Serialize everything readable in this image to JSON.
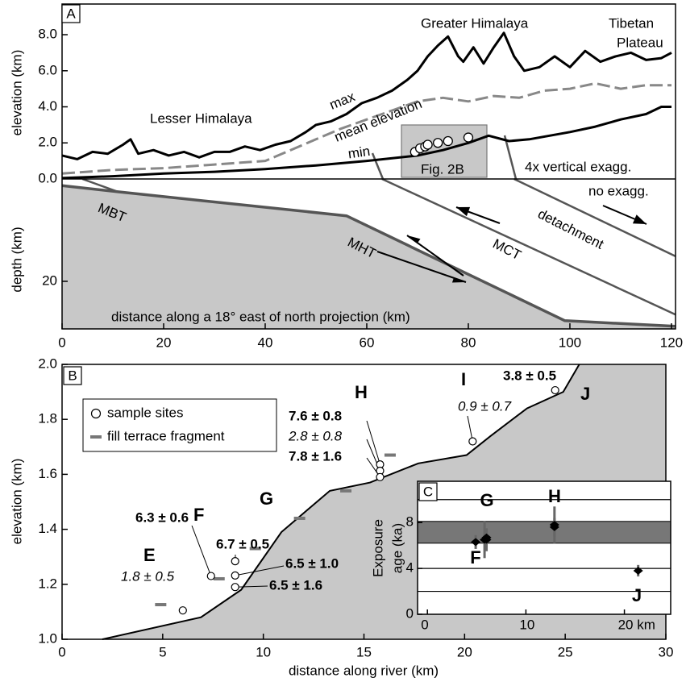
{
  "chart_data": [
    {
      "type": "line",
      "panel": "A",
      "xlabel": "distance along a 18° east of north projection (km)",
      "ylabel": "elevation (km)",
      "y2label": "depth (km)",
      "annotations": [
        "Lesser Himalaya",
        "Greater Himalaya",
        "Tibetan",
        "Plateau",
        "Fig. 2B",
        "4x vertical exagg.",
        "no exagg."
      ],
      "xlim": [
        0,
        120.8
      ],
      "xticks": [
        0,
        20,
        40,
        60,
        80,
        100,
        120
      ],
      "ylim": [
        0,
        9.7
      ],
      "yticks": [
        {
          "value": 0,
          "label": "0.0"
        },
        {
          "value": 2,
          "label": "2.0"
        },
        {
          "value": 4,
          "label": "4.0"
        },
        {
          "value": 6,
          "label": "6.0"
        },
        {
          "value": 8,
          "label": "8.0"
        }
      ],
      "y2lim": [
        0,
        29.3
      ],
      "y2ticks": [
        20
      ],
      "series": [
        {
          "name": "max",
          "color": "#000000",
          "x": [
            0,
            3,
            6,
            9,
            12,
            13.5,
            15,
            18,
            21,
            24,
            27,
            30,
            33,
            36,
            39,
            42,
            45,
            48,
            50,
            53,
            56,
            59,
            62,
            65,
            68,
            70,
            72,
            74,
            76,
            78,
            79,
            81,
            83,
            85,
            87,
            89,
            91,
            94,
            97,
            100,
            103,
            106,
            109,
            112,
            115,
            118,
            120
          ],
          "values": [
            1.3,
            1.1,
            1.5,
            1.4,
            1.9,
            2.2,
            1.4,
            1.6,
            1.3,
            1.5,
            1.2,
            1.5,
            1.5,
            1.8,
            1.6,
            1.9,
            2.1,
            2.6,
            3.0,
            3.2,
            3.6,
            4.2,
            4.5,
            4.9,
            5.5,
            6.0,
            6.8,
            7.4,
            7.9,
            6.8,
            6.5,
            7.3,
            6.4,
            7.3,
            8.1,
            6.8,
            6.0,
            6.2,
            6.8,
            6.2,
            7.1,
            6.5,
            6.8,
            7.0,
            6.6,
            6.7,
            7.0
          ]
        },
        {
          "name": "mean elevation",
          "color": "#888888",
          "dashed": true,
          "x": [
            0,
            10,
            20,
            30,
            40,
            45,
            50,
            55,
            60,
            65,
            70,
            75,
            80,
            85,
            90,
            95,
            100,
            105,
            110,
            115,
            120
          ],
          "values": [
            0.3,
            0.5,
            0.6,
            0.8,
            1.0,
            1.6,
            2.2,
            2.8,
            3.3,
            3.8,
            4.3,
            4.5,
            4.3,
            4.6,
            4.5,
            4.9,
            5.0,
            5.3,
            5.0,
            5.2,
            5.2
          ]
        },
        {
          "name": "min",
          "color": "#000000",
          "x": [
            0,
            10,
            20,
            30,
            40,
            50,
            60,
            70,
            75,
            80,
            84,
            88,
            92,
            96,
            100,
            105,
            110,
            115,
            118,
            120
          ],
          "values": [
            0.05,
            0.15,
            0.3,
            0.4,
            0.55,
            0.75,
            1.0,
            1.3,
            1.6,
            2.0,
            2.4,
            2.1,
            2.2,
            2.4,
            2.6,
            2.9,
            3.3,
            3.6,
            4.0,
            4.0
          ]
        },
        {
          "name": "MBT",
          "axis": "y2",
          "color": "#555555",
          "x": [
            4,
            11
          ],
          "values": [
            0,
            2.5
          ]
        },
        {
          "name": "MHT",
          "axis": "y2",
          "color": "#555555",
          "x": [
            0,
            11,
            56,
            99,
            120.8
          ],
          "values": [
            1.3,
            2.5,
            7.2,
            27.7,
            28.8
          ]
        },
        {
          "name": "MCT",
          "axis": "y2",
          "color": "#555555",
          "x": [
            63,
            120.8
          ],
          "values": [
            0,
            26.5
          ]
        },
        {
          "name": "detachment",
          "axis": "y2",
          "color": "#555555",
          "x": [
            89,
            120.8
          ],
          "values": [
            0,
            15.1
          ]
        },
        {
          "marker": "circle",
          "color": "#ffffff",
          "x": [
            69.5,
            70.5,
            71.5,
            72,
            74,
            76,
            80
          ],
          "values": [
            1.5,
            1.7,
            1.8,
            1.9,
            2.0,
            2.1,
            2.3
          ]
        }
      ]
    },
    {
      "type": "area",
      "panel": "B",
      "xlabel": "distance along river (km)",
      "ylabel": "elevation (km)",
      "xlim": [
        0,
        30
      ],
      "xticks": [
        0,
        5,
        10,
        15,
        20,
        25,
        30
      ],
      "ylim": [
        1,
        2
      ],
      "yticks": [
        {
          "value": 1,
          "label": "1.0"
        },
        1.2,
        1.4,
        1.6,
        1.8,
        {
          "value": 2,
          "label": "2.0"
        }
      ],
      "profile": {
        "color": "#c8c8c8",
        "x": [
          2.0,
          6.9,
          8.9,
          10.9,
          13.3,
          15.3,
          17.7,
          20.1,
          21.3,
          23.1,
          24.9,
          25.7
        ],
        "values": [
          1.0,
          1.08,
          1.18,
          1.39,
          1.54,
          1.57,
          1.64,
          1.67,
          1.74,
          1.84,
          1.9,
          2.0
        ]
      },
      "sites": [
        "E",
        "F",
        "G",
        "H",
        "I",
        "J"
      ],
      "series": [
        {
          "name": "sample sites",
          "marker": "circle",
          "color": "#ffffff",
          "x": [
            6.0,
            7.4,
            8.6,
            8.6,
            8.6,
            15.8,
            15.8,
            15.8,
            20.4,
            24.5
          ],
          "values": [
            1.105,
            1.23,
            1.284,
            1.232,
            1.19,
            1.636,
            1.613,
            1.59,
            1.72,
            1.906
          ],
          "ages": [
            "1.8 ± 0.5",
            "6.3 ± 0.6",
            "6.7 ± 0.5",
            "6.5 ± 1.0",
            "6.5 ± 1.6",
            "7.6 ± 0.8",
            "2.8 ± 0.8",
            "7.8 ± 1.6",
            "0.9 ± 0.7",
            "3.8 ± 0.5"
          ],
          "ages_italic": [
            true,
            false,
            false,
            false,
            false,
            false,
            true,
            false,
            true,
            false
          ]
        },
        {
          "name": "fill terrace fragment",
          "marker": "dash",
          "color": "#777777",
          "x": [
            4.9,
            7.8,
            9.6,
            11.8,
            14.1,
            16.3
          ],
          "values": [
            1.126,
            1.22,
            1.33,
            1.44,
            1.54,
            1.67
          ]
        }
      ]
    },
    {
      "type": "scatter",
      "panel": "C",
      "ylabel": [
        "Exposure",
        "age (ka)"
      ],
      "xlim": [
        -1,
        24.7
      ],
      "xticks": [
        0,
        10,
        {
          "value": 20,
          "label": "20 km"
        }
      ],
      "ylim": [
        0,
        11.6
      ],
      "yticks": [
        0,
        4,
        8
      ],
      "band": [
        6.2,
        8.1
      ],
      "reference_lines": [
        2,
        4,
        10
      ],
      "sites": [
        "G",
        "H",
        "F",
        "J"
      ],
      "series": [
        {
          "color": "#000000",
          "x": [
            4.9,
            6.0,
            6.0,
            5.8,
            12.9,
            12.9,
            21.4
          ],
          "values": [
            6.3,
            6.7,
            6.5,
            6.5,
            7.6,
            7.8,
            3.8
          ],
          "errors": [
            0.6,
            0.5,
            1.0,
            1.6,
            0.8,
            1.6,
            0.5
          ]
        }
      ]
    }
  ]
}
